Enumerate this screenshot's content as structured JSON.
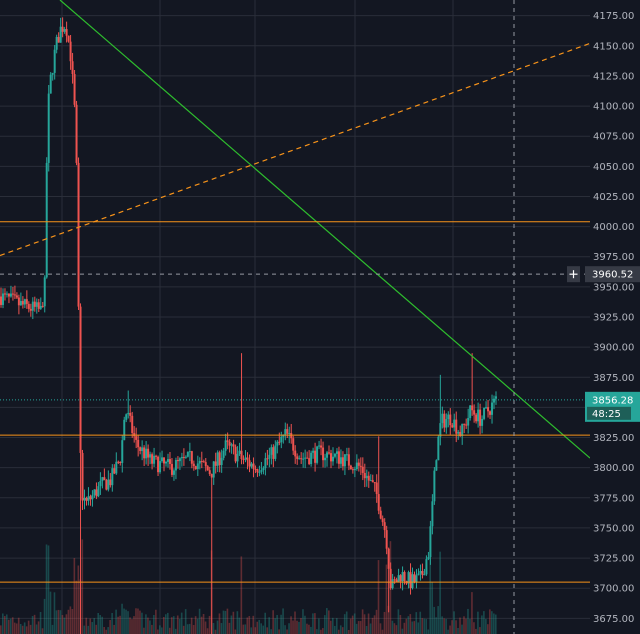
{
  "chart_data": {
    "type": "candlestick",
    "title": "",
    "xlabel": "",
    "ylabel": "",
    "ylim": [
      3662,
      4188
    ],
    "y_ticks": [
      "4175.00",
      "4150.00",
      "4125.00",
      "4100.00",
      "4075.00",
      "4050.00",
      "4025.00",
      "4000.00",
      "3975.00",
      "3950.00",
      "3925.00",
      "3900.00",
      "3875.00",
      "3850.00",
      "3825.00",
      "3800.00",
      "3775.00",
      "3750.00",
      "3725.00",
      "3700.00",
      "3675.00"
    ],
    "grid": true,
    "candle_count": 250,
    "price_path": [
      [
        0,
        3942
      ],
      [
        20,
        3935
      ],
      [
        40,
        3930
      ],
      [
        45,
        3958
      ],
      [
        46,
        4090
      ],
      [
        50,
        4125
      ],
      [
        55,
        4150
      ],
      [
        60,
        4165
      ],
      [
        65,
        4168
      ],
      [
        70,
        4140
      ],
      [
        75,
        4080
      ],
      [
        78,
        3900
      ],
      [
        80,
        3780
      ],
      [
        85,
        3770
      ],
      [
        90,
        3775
      ],
      [
        100,
        3785
      ],
      [
        110,
        3790
      ],
      [
        120,
        3810
      ],
      [
        124,
        3848
      ],
      [
        128,
        3840
      ],
      [
        135,
        3820
      ],
      [
        150,
        3805
      ],
      [
        170,
        3800
      ],
      [
        190,
        3808
      ],
      [
        210,
        3796
      ],
      [
        225,
        3818
      ],
      [
        240,
        3808
      ],
      [
        255,
        3800
      ],
      [
        270,
        3810
      ],
      [
        285,
        3828
      ],
      [
        300,
        3808
      ],
      [
        320,
        3812
      ],
      [
        340,
        3808
      ],
      [
        360,
        3800
      ],
      [
        375,
        3780
      ],
      [
        385,
        3745
      ],
      [
        390,
        3700
      ],
      [
        400,
        3712
      ],
      [
        410,
        3705
      ],
      [
        420,
        3708
      ],
      [
        428,
        3732
      ],
      [
        435,
        3810
      ],
      [
        440,
        3838
      ],
      [
        450,
        3842
      ],
      [
        460,
        3828
      ],
      [
        470,
        3848
      ],
      [
        480,
        3840
      ],
      [
        495,
        3856
      ]
    ],
    "spikes": [
      {
        "x": 128,
        "high": 3864
      },
      {
        "x": 240,
        "high": 3895
      },
      {
        "x": 287,
        "high": 3832
      },
      {
        "x": 378,
        "high": 3826
      },
      {
        "x": 440,
        "high": 3877
      },
      {
        "x": 471,
        "high": 3895
      }
    ],
    "deep_wicks": [
      {
        "x": 80,
        "low": 3660
      },
      {
        "x": 210,
        "low": 3662
      },
      {
        "x": 388,
        "low": 3680
      }
    ],
    "drawings": [
      {
        "kind": "trendline",
        "color": "#2ebd2e",
        "from": [
          60,
          4188
        ],
        "to": [
          590,
          3808
        ]
      },
      {
        "kind": "trendline",
        "color": "#f7931a",
        "dash": true,
        "from": [
          0,
          3976
        ],
        "to": [
          590,
          4152
        ]
      },
      {
        "kind": "horizontal",
        "color": "#f7931a",
        "price": 4004
      },
      {
        "kind": "horizontal",
        "color": "#f7931a",
        "price": 3827
      },
      {
        "kind": "horizontal",
        "color": "#f7931a",
        "price": 3705
      }
    ],
    "crosshair": {
      "price": 3960.52,
      "label": "3960.52",
      "x": 514
    },
    "last_price": {
      "price": 3856.28,
      "label": "3856.28",
      "countdown": "48:25"
    },
    "colors": {
      "background": "#131722",
      "up": "#26a69a",
      "down": "#ef5350",
      "grid": "#2a2e39",
      "axis_text": "#b2b5be",
      "crosshair_badge": "#363a45",
      "last_price_badge": "#26a69a"
    }
  }
}
